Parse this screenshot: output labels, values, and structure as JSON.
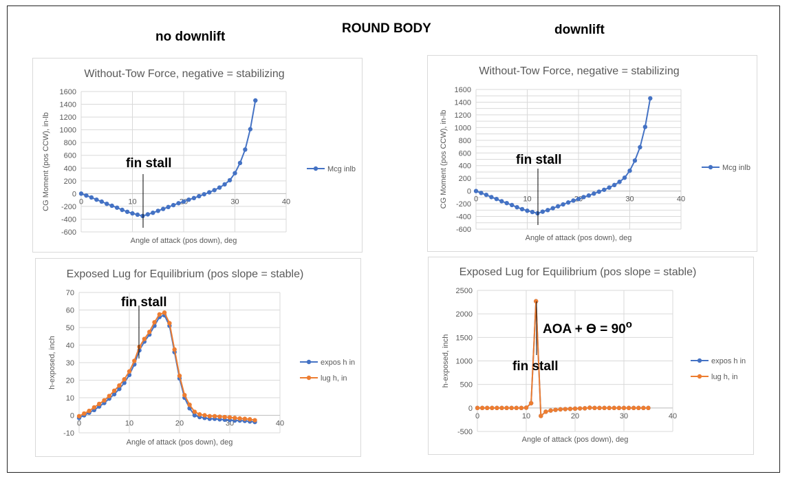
{
  "page": {
    "main_title": "ROUND BODY",
    "left_header": "no downlift",
    "right_header": "downlift"
  },
  "colors": {
    "blue": "#4472c4",
    "orange": "#ed7d31",
    "grid": "#d9d9d9",
    "axis": "#bfbfbf",
    "text": "#595959"
  },
  "chart_data": [
    {
      "type": "line",
      "title": "Without-Tow Force, negative = stabilizing",
      "xlabel": "Angle of attack (pos down), deg",
      "ylabel": "CG Moment (pos CCW), in-lb",
      "xlim": [
        0,
        40
      ],
      "ylim": [
        -600,
        1600
      ],
      "xticks": [
        0,
        10,
        20,
        30,
        40
      ],
      "yticks": [
        -600,
        -400,
        -200,
        0,
        200,
        400,
        600,
        800,
        1000,
        1200,
        1400,
        1600
      ],
      "grid": true,
      "legend": "right",
      "x": [
        0,
        1,
        2,
        3,
        4,
        5,
        6,
        7,
        8,
        9,
        10,
        11,
        12,
        13,
        14,
        15,
        16,
        17,
        18,
        19,
        20,
        21,
        22,
        23,
        24,
        25,
        26,
        27,
        28,
        29,
        30,
        31,
        32,
        33,
        34,
        35
      ],
      "series": [
        {
          "name": "Mcg inlb",
          "color": "#4472c4",
          "values": [
            0,
            -30,
            -60,
            -95,
            -125,
            -160,
            -190,
            -220,
            -255,
            -285,
            -310,
            -330,
            -350,
            -325,
            -300,
            -270,
            -240,
            -210,
            -180,
            -150,
            -125,
            -95,
            -70,
            -40,
            -10,
            20,
            55,
            95,
            145,
            210,
            320,
            480,
            690,
            1010,
            1460,
            null
          ]
        }
      ],
      "annotations": [
        {
          "text": "fin stall",
          "x": 12
        }
      ]
    },
    {
      "type": "line",
      "title": "Exposed Lug for Equilibrium (pos slope = stable)",
      "xlabel": "Angle of attack (pos down), deg",
      "ylabel": "h-exposed, inch",
      "xlim": [
        0,
        40
      ],
      "ylim": [
        -10,
        70
      ],
      "xticks": [
        0,
        10,
        20,
        30,
        40
      ],
      "yticks": [
        -10,
        0,
        10,
        20,
        30,
        40,
        50,
        60,
        70
      ],
      "grid": true,
      "legend": "right",
      "x": [
        0,
        1,
        2,
        3,
        4,
        5,
        6,
        7,
        8,
        9,
        10,
        11,
        12,
        13,
        14,
        15,
        16,
        17,
        18,
        19,
        20,
        21,
        22,
        23,
        24,
        25,
        26,
        27,
        28,
        29,
        30,
        31,
        32,
        33,
        34,
        35
      ],
      "series": [
        {
          "name": "expos h in",
          "color": "#4472c4",
          "values": [
            -1.5,
            0,
            1.5,
            3,
            5,
            7,
            9.5,
            12,
            15,
            18.5,
            23,
            29,
            37,
            42,
            46,
            51,
            56,
            57,
            51,
            36,
            21,
            10,
            4,
            0,
            -1,
            -1.5,
            -2,
            -2,
            -2.3,
            -2.5,
            -2.7,
            -3,
            -3,
            -3.2,
            -3.5,
            -3.8
          ]
        },
        {
          "name": "lug h, in",
          "color": "#ed7d31",
          "values": [
            -0.5,
            1,
            2.5,
            4.5,
            6.5,
            8.5,
            11,
            14,
            17,
            20.5,
            25,
            31,
            39,
            43.5,
            47.5,
            53,
            57.5,
            58.5,
            52.5,
            37.5,
            22.5,
            11.5,
            6,
            2,
            0.5,
            0,
            -0.5,
            -0.5,
            -0.8,
            -1,
            -1.2,
            -1.5,
            -1.8,
            -2,
            -2.3,
            -2.8
          ]
        }
      ],
      "annotations": [
        {
          "text": "fin stall",
          "x": 12
        }
      ]
    },
    {
      "type": "line",
      "title": "Without-Tow Force, negative = stabilizing",
      "xlabel": "Angle of attack (pos down), deg",
      "ylabel": "CG Moment (pos CCW), in-lb",
      "xlim": [
        0,
        40
      ],
      "ylim": [
        -600,
        1600
      ],
      "xticks": [
        0,
        10,
        20,
        30,
        40
      ],
      "yticks": [
        -600,
        -500,
        -400,
        -300,
        -200,
        -100,
        0,
        100,
        200,
        300,
        400,
        500,
        600,
        700,
        800,
        900,
        1000,
        1100,
        1200,
        1300,
        1400,
        1500,
        1600
      ],
      "ytick_labels": [
        -600,
        -400,
        -200,
        0,
        200,
        400,
        600,
        800,
        1000,
        1200,
        1400,
        1600
      ],
      "grid": true,
      "legend": "right",
      "x": [
        0,
        1,
        2,
        3,
        4,
        5,
        6,
        7,
        8,
        9,
        10,
        11,
        12,
        13,
        14,
        15,
        16,
        17,
        18,
        19,
        20,
        21,
        22,
        23,
        24,
        25,
        26,
        27,
        28,
        29,
        30,
        31,
        32,
        33,
        34,
        35
      ],
      "series": [
        {
          "name": "Mcg inlb",
          "color": "#4472c4",
          "values": [
            0,
            -30,
            -60,
            -95,
            -125,
            -160,
            -190,
            -220,
            -255,
            -285,
            -310,
            -330,
            -350,
            -325,
            -300,
            -270,
            -240,
            -210,
            -180,
            -150,
            -125,
            -95,
            -70,
            -40,
            -10,
            20,
            55,
            95,
            145,
            210,
            320,
            480,
            690,
            1010,
            1460,
            null
          ]
        }
      ],
      "annotations": [
        {
          "text": "fin stall",
          "x": 12
        }
      ]
    },
    {
      "type": "line",
      "title": "Exposed Lug for Equilibrium (pos slope = stable)",
      "xlabel": "Angle of attack (pos down), deg",
      "ylabel": "h-exposed, inch",
      "xlim": [
        0,
        40
      ],
      "ylim": [
        -500,
        2500
      ],
      "xticks": [
        0,
        10,
        20,
        30,
        40
      ],
      "yticks": [
        -500,
        0,
        500,
        1000,
        1500,
        2000,
        2500
      ],
      "grid": true,
      "legend": "right",
      "x": [
        0,
        1,
        2,
        3,
        4,
        5,
        6,
        7,
        8,
        9,
        10,
        11,
        12,
        13,
        14,
        15,
        16,
        17,
        18,
        19,
        20,
        21,
        22,
        23,
        24,
        25,
        26,
        27,
        28,
        29,
        30,
        31,
        32,
        33,
        34,
        35
      ],
      "series": [
        {
          "name": "expos h in",
          "color": "#4472c4",
          "values": [
            0,
            0,
            0,
            0,
            0,
            0,
            0,
            0,
            0,
            0,
            5,
            100,
            2270,
            -170,
            -80,
            -55,
            -40,
            -30,
            -25,
            -20,
            -15,
            -10,
            -8,
            5,
            0,
            0,
            0,
            0,
            0,
            0,
            0,
            0,
            0,
            0,
            0,
            0
          ]
        },
        {
          "name": "lug h, in",
          "color": "#ed7d31",
          "values": [
            0,
            0,
            0,
            0,
            0,
            0,
            0,
            0,
            0,
            0,
            5,
            100,
            2270,
            -170,
            -80,
            -55,
            -40,
            -30,
            -25,
            -20,
            -15,
            -10,
            -8,
            5,
            0,
            0,
            0,
            0,
            0,
            0,
            0,
            0,
            0,
            0,
            0,
            0
          ]
        }
      ],
      "annotations": [
        {
          "text": "fin stall",
          "x": 12
        },
        {
          "text": "AOA + ϴ = 90",
          "superscript": "o"
        }
      ]
    }
  ]
}
